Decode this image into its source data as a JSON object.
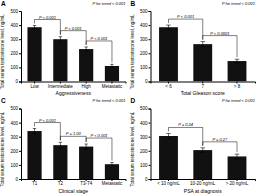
{
  "chart_data": [
    {
      "type": "bar",
      "title": "A",
      "categories": [
        "Low",
        "Intermediate",
        "High",
        "Metastatic"
      ],
      "values": [
        385,
        300,
        230,
        110
      ],
      "errors": [
        12,
        18,
        15,
        12
      ],
      "color": "#111111",
      "xlabel": "Aggressiveness",
      "ylabel": "Total serum testosterone level, ng/mL",
      "ylim": [
        0,
        500
      ],
      "yticks": [
        0,
        100,
        200,
        300,
        400,
        500
      ],
      "annotations": [
        "P for trend < 0.001"
      ],
      "brackets": [
        {
          "between": [
            "Low",
            "Intermediate"
          ],
          "label": "P < 0.001"
        },
        {
          "between": [
            "Intermediate",
            "High"
          ],
          "label": "P < 0.001"
        },
        {
          "between": [
            "High",
            "Metastatic"
          ],
          "label": "P < 0.001"
        }
      ]
    },
    {
      "type": "bar",
      "title": "B",
      "categories": [
        "< 6",
        "7",
        "> 8"
      ],
      "values": [
        385,
        265,
        145
      ],
      "errors": [
        15,
        18,
        13
      ],
      "color": "#111111",
      "xlabel": "Total Gleason score",
      "ylabel": "Total serum testosterone level, ng/mL",
      "ylim": [
        0,
        500
      ],
      "yticks": [
        0,
        100,
        200,
        300,
        400,
        500
      ],
      "annotations": [
        "P for trend < 0.001"
      ],
      "brackets": [
        {
          "between": [
            "< 6",
            "7"
          ],
          "label": "P < 0.001"
        },
        {
          "between": [
            "7",
            "> 8"
          ],
          "label": "P < 0.0001"
        }
      ]
    },
    {
      "type": "bar",
      "title": "C",
      "categories": [
        "T1",
        "T2",
        "T3-T4",
        "Metastatic"
      ],
      "values": [
        340,
        240,
        230,
        105
      ],
      "errors": [
        18,
        20,
        18,
        12
      ],
      "color": "#111111",
      "xlabel": "Clinical stage",
      "ylabel": "Total serum testosterone level, ng/mL",
      "ylim": [
        0,
        500
      ],
      "yticks": [
        0,
        100,
        200,
        300,
        400,
        500
      ],
      "annotations": [
        "P for trend < 0.001"
      ],
      "brackets": [
        {
          "between": [
            "T1",
            "T2"
          ],
          "label": "P < 0.001"
        },
        {
          "between": [
            "T2",
            "T3-T4"
          ],
          "label": "P = 1.00"
        },
        {
          "between": [
            "T3-T4",
            "Metastatic"
          ],
          "label": "P < 0.001"
        }
      ]
    },
    {
      "type": "bar",
      "title": "D",
      "categories": [
        "< 10 ng/mL",
        "10-20 ng/mL",
        "> 20 ng/mL"
      ],
      "values": [
        305,
        205,
        160
      ],
      "errors": [
        18,
        16,
        16
      ],
      "color": "#111111",
      "xlabel": "PSA at diagnosis",
      "ylabel": "Total serum testosterone level, ng/mL",
      "ylim": [
        0,
        500
      ],
      "yticks": [
        0,
        100,
        200,
        300,
        400,
        500
      ],
      "annotations": [
        "P for trend < 0.001"
      ],
      "brackets": [
        {
          "between": [
            "< 10 ng/mL",
            "10-20 ng/mL"
          ],
          "label": "P = 0.24"
        },
        {
          "between": [
            "10-20 ng/mL",
            "> 20 ng/mL"
          ],
          "label": "P = 0.27"
        }
      ]
    }
  ]
}
